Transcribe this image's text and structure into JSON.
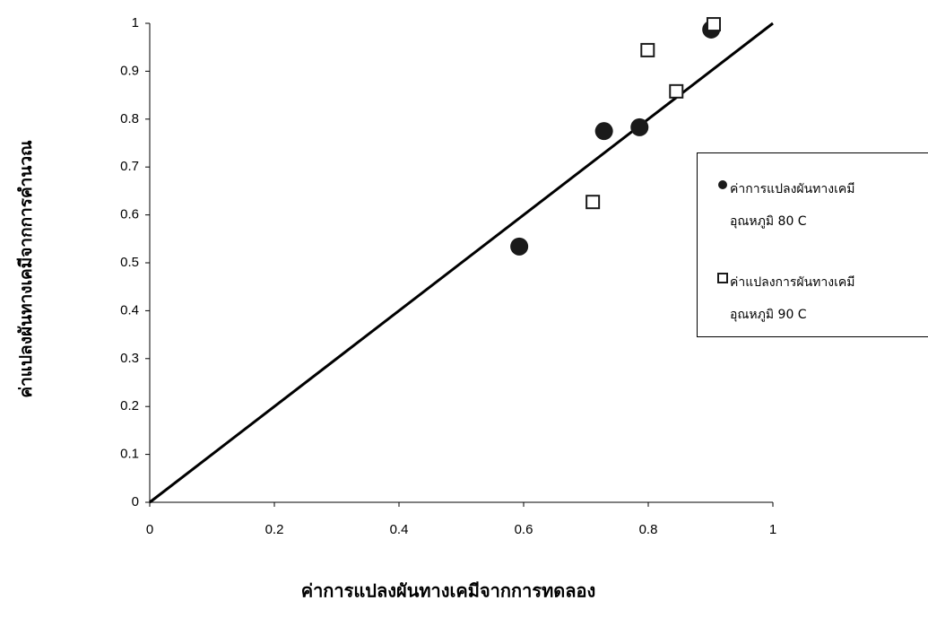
{
  "chart_data": {
    "type": "scatter",
    "x_label": "ค่าการแปลงผันทางเคมีจากการทดลอง",
    "y_label": "ค่าแปลงผันทางเคมีจากการคำนวณ",
    "xlim": [
      0,
      1
    ],
    "ylim": [
      0,
      1
    ],
    "xticks": [
      0,
      0.2,
      0.4,
      0.6,
      0.8,
      1
    ],
    "yticks": [
      0,
      0.1,
      0.2,
      0.3,
      0.4,
      0.5,
      0.6,
      0.7,
      0.8,
      0.9,
      1
    ],
    "reference_line": {
      "x": [
        0,
        1
      ],
      "y": [
        0,
        1
      ],
      "color": "#000000"
    },
    "legend": "right",
    "series": [
      {
        "name": "ค่าการแปลงผันทางเคมี\nอุณหภูมิ 80 C",
        "marker": "circle",
        "color": "#1a1a1a",
        "x": [
          0.593,
          0.729,
          0.786,
          0.901
        ],
        "values": [
          0.534,
          0.775,
          0.783,
          0.987
        ]
      },
      {
        "name": "ค่าแปลงการผันทางเคมี\nอุณหภูมิ 90 C",
        "marker": "square",
        "color": "#1a1a1a",
        "x": [
          0.711,
          0.799,
          0.845,
          0.905
        ],
        "values": [
          0.627,
          0.944,
          0.858,
          0.998
        ]
      }
    ]
  }
}
